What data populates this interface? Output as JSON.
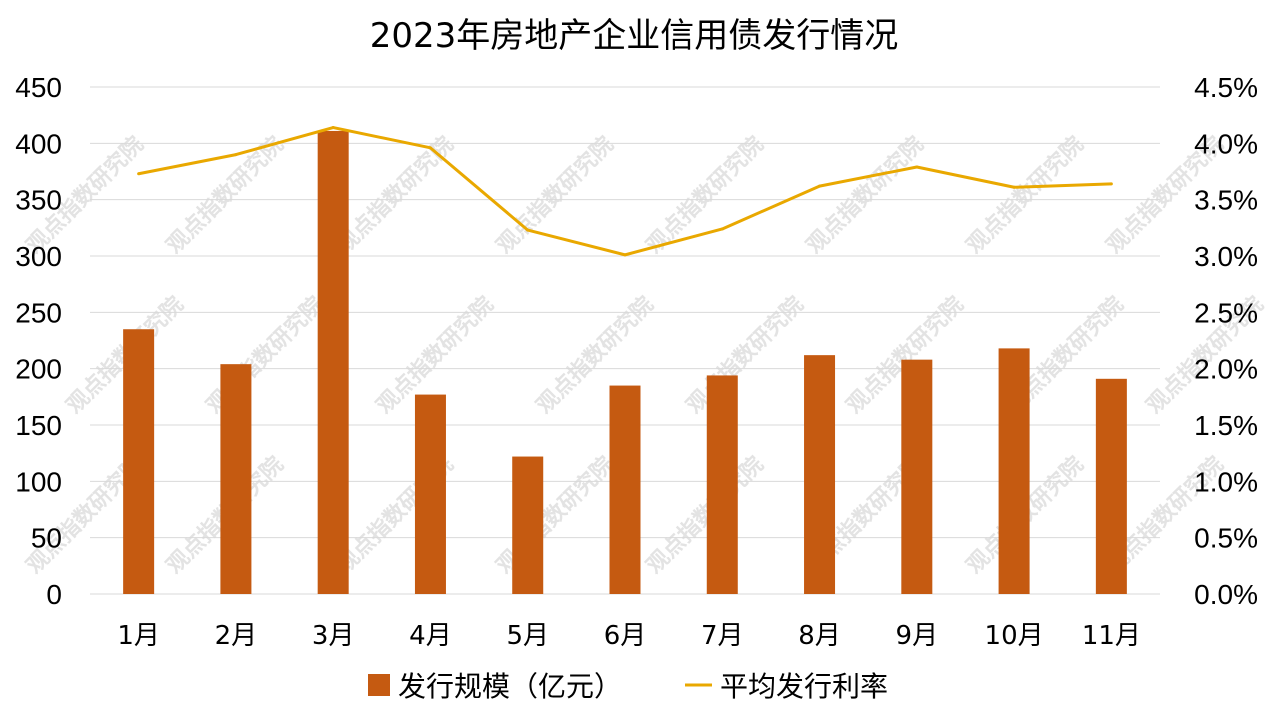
{
  "chart_data": {
    "type": "bar",
    "title": "2023年房地产企业信用债发行情况",
    "categories": [
      "1月",
      "2月",
      "3月",
      "4月",
      "5月",
      "6月",
      "7月",
      "8月",
      "9月",
      "10月",
      "11月"
    ],
    "series": [
      {
        "name": "发行规模（亿元）",
        "type": "bar",
        "axis": "left",
        "color": "#C55A11",
        "values": [
          235,
          204,
          411,
          177,
          122,
          185,
          194,
          212,
          208,
          218,
          191
        ]
      },
      {
        "name": "平均发行利率",
        "type": "line",
        "axis": "right",
        "color": "#E9A800",
        "values": [
          3.73,
          3.9,
          4.14,
          3.96,
          3.23,
          3.01,
          3.24,
          3.62,
          3.79,
          3.61,
          3.64
        ]
      }
    ],
    "y_left": {
      "ylim": [
        0,
        450
      ],
      "ticks": [
        "0",
        "50",
        "100",
        "150",
        "200",
        "250",
        "300",
        "350",
        "400",
        "450"
      ]
    },
    "y_right": {
      "ylim": [
        0,
        4.5
      ],
      "ticks": [
        "0.0%",
        "0.5%",
        "1.0%",
        "1.5%",
        "2.0%",
        "2.5%",
        "3.0%",
        "3.5%",
        "4.0%",
        "4.5%"
      ]
    },
    "grid": true,
    "legend": "bottom",
    "watermark": "观点指数研究院"
  }
}
